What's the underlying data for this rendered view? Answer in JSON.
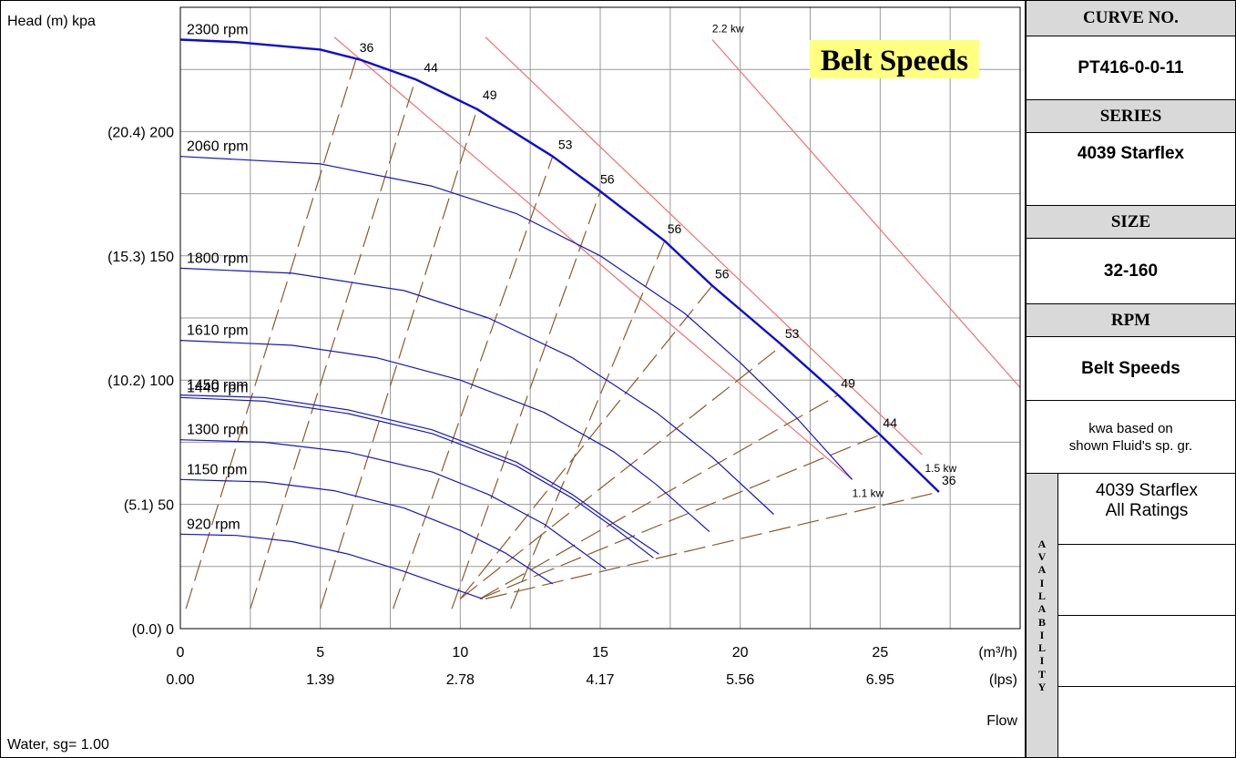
{
  "colors": {
    "head_curve": "#1515c8",
    "head_curve_max": "#0b0bd8",
    "belt_speed_line": "#8b5a2b",
    "power_line": "#f07070",
    "grid": "#9a9a9a",
    "header_fill": "#d9d9d9",
    "title_highlight": "#ffff80"
  },
  "chart_data": {
    "type": "line",
    "title": "Belt Speeds",
    "ylabel": "Head (m)  kpa",
    "xlabel": "Flow",
    "xlim": [
      0,
      30
    ],
    "ylim": [
      0,
      250
    ],
    "x_ticks": [
      {
        "value": 0,
        "label": "0",
        "lps": "0.00"
      },
      {
        "value": 5,
        "label": "5",
        "lps": "1.39"
      },
      {
        "value": 10,
        "label": "10",
        "lps": "2.78"
      },
      {
        "value": 15,
        "label": "15",
        "lps": "4.17"
      },
      {
        "value": 20,
        "label": "20",
        "lps": "5.56"
      },
      {
        "value": 25,
        "label": "25",
        "lps": "6.95"
      }
    ],
    "x_unit": "(m³/h)",
    "x2_unit": "(lps)",
    "y_ticks": [
      {
        "value": 0,
        "label": "(0.0) 0"
      },
      {
        "value": 50,
        "label": "(5.1) 50"
      },
      {
        "value": 100,
        "label": "(10.2) 100"
      },
      {
        "value": 150,
        "label": "(15.3) 150"
      },
      {
        "value": 200,
        "label": "(20.4) 200"
      }
    ],
    "footnote": "Water, sg= 1.00",
    "series": [
      {
        "name": "2300 rpm",
        "bold": true,
        "x": [
          0,
          2,
          5,
          6.4,
          8.4,
          10.6,
          13.3,
          15,
          17.3,
          19,
          21.5,
          23.5,
          25,
          27.1
        ],
        "y": [
          237,
          236,
          233,
          229,
          221,
          209,
          190,
          176,
          156,
          138,
          114,
          94,
          78,
          55
        ]
      },
      {
        "name": "2060 rpm",
        "x": [
          0,
          5,
          9,
          12,
          15,
          18,
          20,
          22,
          24
        ],
        "y": [
          190,
          187,
          178,
          167,
          150,
          127,
          107,
          85,
          60
        ]
      },
      {
        "name": "1800 rpm",
        "x": [
          0,
          4,
          8,
          11,
          14,
          17,
          19,
          21.2
        ],
        "y": [
          145,
          143,
          136,
          125,
          109,
          87,
          69,
          46
        ]
      },
      {
        "name": "1610 rpm",
        "x": [
          0,
          4,
          7,
          10,
          13,
          15.5,
          17,
          18.9
        ],
        "y": [
          116,
          114,
          109,
          100,
          87,
          71,
          58,
          39
        ]
      },
      {
        "name": "1450 rpm",
        "x": [
          0,
          3,
          6,
          9,
          12,
          14,
          15.5,
          17.1
        ],
        "y": [
          94,
          93,
          88,
          80,
          67,
          54,
          42,
          30
        ]
      },
      {
        "name": "1440 rpm",
        "x": [
          0,
          3,
          6,
          9,
          12,
          14,
          15.5,
          16.9
        ],
        "y": [
          93,
          91.5,
          86.5,
          78.5,
          65.5,
          52.5,
          40.5,
          28.5
        ]
      },
      {
        "name": "1300 rpm",
        "x": [
          0,
          3,
          6,
          9,
          11,
          13,
          15.2
        ],
        "y": [
          76,
          75,
          71,
          63,
          54,
          42,
          24
        ]
      },
      {
        "name": "1150 rpm",
        "x": [
          0,
          3,
          5.5,
          8,
          10,
          11.6,
          13.3
        ],
        "y": [
          60,
          59,
          55.5,
          48.5,
          39.5,
          30.5,
          18
        ]
      },
      {
        "name": "920 rpm",
        "x": [
          0,
          2,
          4,
          6,
          8,
          9.5,
          10.8
        ],
        "y": [
          38,
          37.5,
          35,
          30,
          23,
          17,
          12
        ]
      }
    ],
    "belt_speed_lines": [
      {
        "label": "36",
        "from": [
          0.2,
          8
        ],
        "to": [
          6.3,
          230
        ]
      },
      {
        "label": "44",
        "from": [
          2.5,
          8
        ],
        "to": [
          8.4,
          221
        ]
      },
      {
        "label": "49",
        "from": [
          5,
          8
        ],
        "to": [
          10.6,
          209
        ]
      },
      {
        "label": "53",
        "from": [
          7.6,
          8
        ],
        "to": [
          13.3,
          190
        ]
      },
      {
        "label": "56",
        "from": [
          9.7,
          8
        ],
        "to": [
          15,
          176
        ]
      },
      {
        "label": "56",
        "from": [
          11.8,
          8
        ],
        "to": [
          17.3,
          156
        ]
      },
      {
        "label": "56",
        "from": [
          10,
          12
        ],
        "to": [
          19,
          138
        ]
      },
      {
        "label": "53",
        "from": [
          10,
          12
        ],
        "to": [
          21.5,
          114
        ]
      },
      {
        "label": "49",
        "from": [
          10.7,
          12
        ],
        "to": [
          23.5,
          94
        ]
      },
      {
        "label": "44",
        "from": [
          10.7,
          12
        ],
        "to": [
          25,
          78
        ]
      },
      {
        "label": "36",
        "from": [
          10.9,
          12
        ],
        "to": [
          27.1,
          55
        ]
      }
    ],
    "belt_speed_labels": [
      {
        "label": "36",
        "x": 6.4,
        "y": 232
      },
      {
        "label": "44",
        "x": 8.7,
        "y": 224
      },
      {
        "label": "49",
        "x": 10.8,
        "y": 213
      },
      {
        "label": "53",
        "x": 13.5,
        "y": 193
      },
      {
        "label": "56",
        "x": 15,
        "y": 179
      },
      {
        "label": "56",
        "x": 17.4,
        "y": 159
      },
      {
        "label": "56",
        "x": 19.1,
        "y": 141
      },
      {
        "label": "53",
        "x": 21.6,
        "y": 117
      },
      {
        "label": "49",
        "x": 23.6,
        "y": 97
      },
      {
        "label": "44",
        "x": 25.1,
        "y": 81
      },
      {
        "label": "36",
        "x": 27.2,
        "y": 58
      }
    ],
    "power_lines": [
      {
        "label": "1.1 kw",
        "from": [
          5.5,
          238
        ],
        "to": [
          24,
          60
        ],
        "label_at": [
          24,
          53
        ]
      },
      {
        "label": "1.5 kw",
        "from": [
          10.9,
          238
        ],
        "to": [
          26.5,
          70
        ],
        "label_at": [
          26.6,
          63
        ]
      },
      {
        "label": "2.2 kw",
        "from": [
          19,
          237
        ],
        "to": [
          30,
          97
        ],
        "label_at": [
          19,
          240
        ]
      }
    ]
  },
  "panel": {
    "curve_no_label": "CURVE NO.",
    "curve_no": "PT416-0-0-11",
    "series_label": "SERIES",
    "series": "4039 Starflex",
    "size_label": "SIZE",
    "size": "32-160",
    "rpm_label": "RPM",
    "rpm": "Belt Speeds",
    "note_line1": "kwa based on",
    "note_line2": "shown Fluid's sp. gr.",
    "availability_label": "AVAILABILITY",
    "availability_line1": "4039 Starflex",
    "availability_line2": "All Ratings"
  }
}
